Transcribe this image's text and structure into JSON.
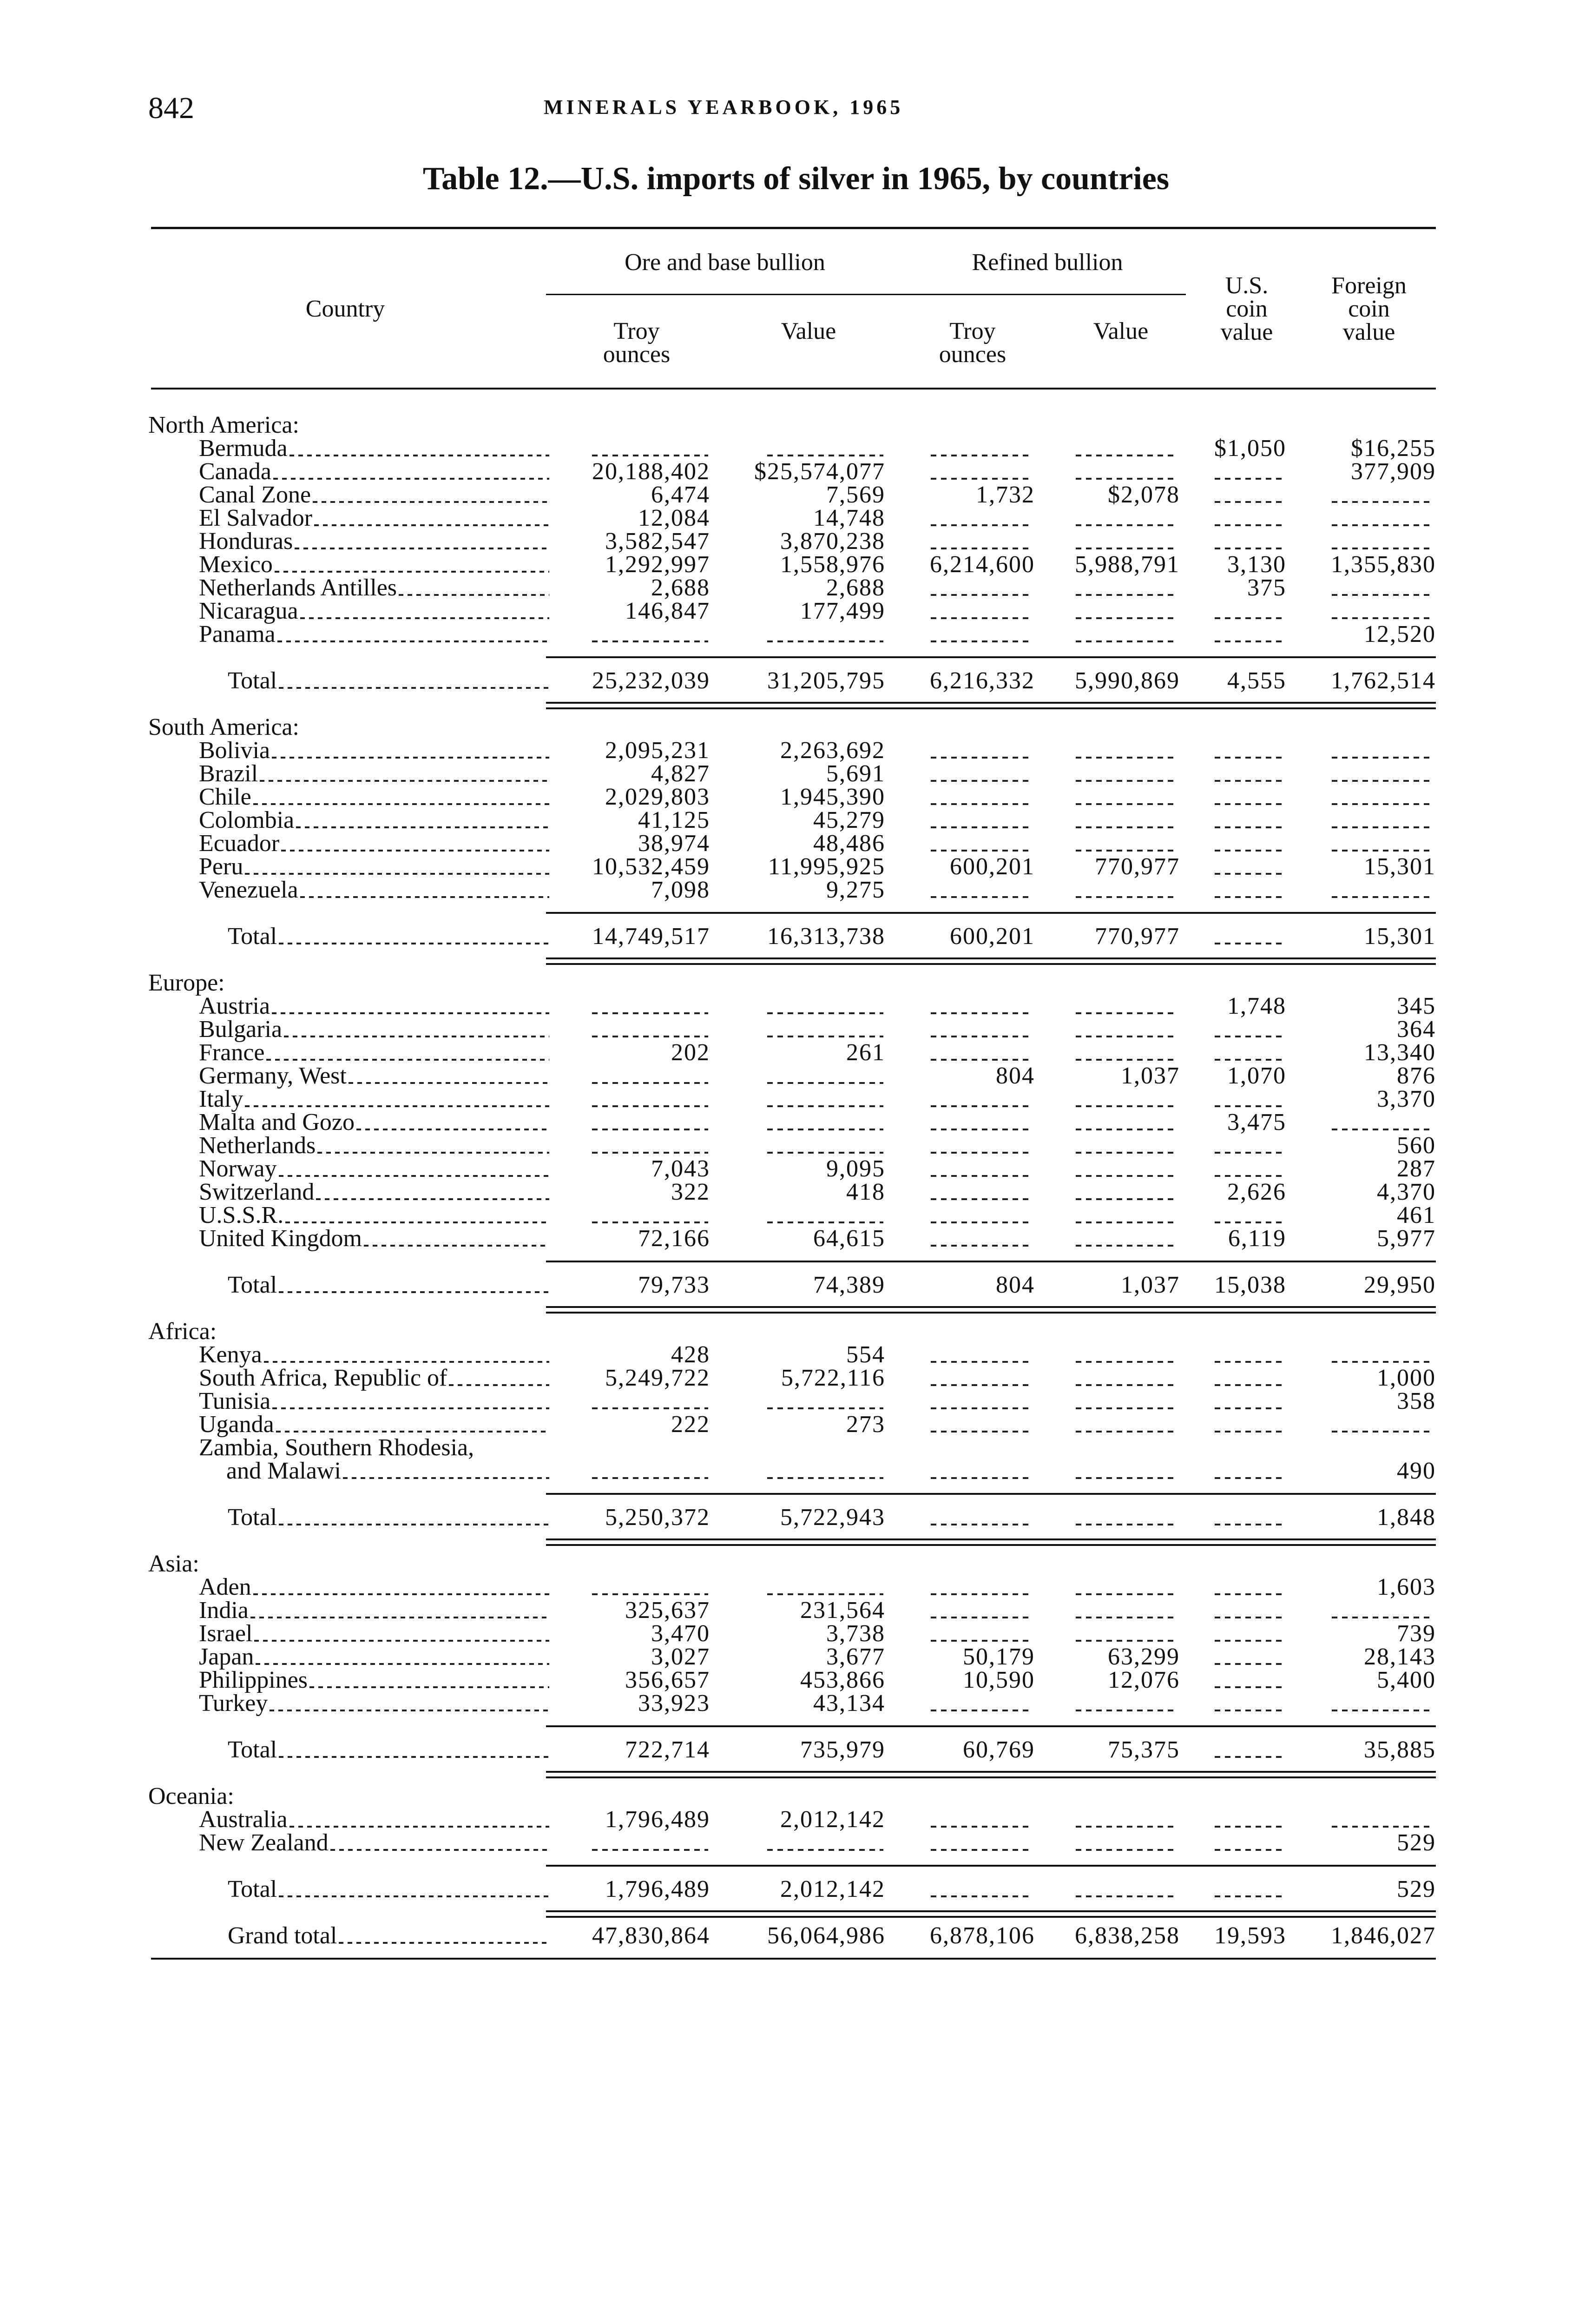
{
  "page": {
    "page_number": "842",
    "running_head": "MINERALS YEARBOOK, 1965",
    "title": "Table 12.—U.S. imports of silver in 1965, by countries"
  },
  "headers": {
    "country": "Country",
    "ore_group": "Ore and base bullion",
    "refined_group": "Refined bullion",
    "troy_ounces_1": "Troy",
    "troy_ounces_1b": "ounces",
    "value_1": "Value",
    "troy_ounces_2": "Troy",
    "troy_ounces_2b": "ounces",
    "value_2": "Value",
    "us_coin_1": "U.S.",
    "us_coin_2": "coin",
    "us_coin_3": "value",
    "foreign_coin_1": "Foreign",
    "foreign_coin_2": "coin",
    "foreign_coin_3": "value"
  },
  "sections": [
    {
      "name": "North America:",
      "items": [
        {
          "label": "Bermuda",
          "values": [
            "",
            "",
            "",
            "",
            "$1,050",
            "$16,255"
          ]
        },
        {
          "label": "Canada",
          "values": [
            "20,188,402",
            "$25,574,077",
            "",
            "",
            "",
            "377,909"
          ]
        },
        {
          "label": "Canal Zone",
          "values": [
            "6,474",
            "7,569",
            "1,732",
            "$2,078",
            "",
            ""
          ]
        },
        {
          "label": "El Salvador",
          "values": [
            "12,084",
            "14,748",
            "",
            "",
            "",
            ""
          ]
        },
        {
          "label": "Honduras",
          "values": [
            "3,582,547",
            "3,870,238",
            "",
            "",
            "",
            ""
          ]
        },
        {
          "label": "Mexico",
          "values": [
            "1,292,997",
            "1,558,976",
            "6,214,600",
            "5,988,791",
            "3,130",
            "1,355,830"
          ]
        },
        {
          "label": "Netherlands Antilles",
          "values": [
            "2,688",
            "2,688",
            "",
            "",
            "375",
            ""
          ]
        },
        {
          "label": "Nicaragua",
          "values": [
            "146,847",
            "177,499",
            "",
            "",
            "",
            ""
          ]
        },
        {
          "label": "Panama",
          "values": [
            "",
            "",
            "",
            "",
            "",
            "12,520"
          ]
        }
      ],
      "total": {
        "label": "Total",
        "values": [
          "25,232,039",
          "31,205,795",
          "6,216,332",
          "5,990,869",
          "4,555",
          "1,762,514"
        ]
      }
    },
    {
      "name": "South America:",
      "items": [
        {
          "label": "Bolivia",
          "values": [
            "2,095,231",
            "2,263,692",
            "",
            "",
            "",
            ""
          ]
        },
        {
          "label": "Brazil",
          "values": [
            "4,827",
            "5,691",
            "",
            "",
            "",
            ""
          ]
        },
        {
          "label": "Chile",
          "values": [
            "2,029,803",
            "1,945,390",
            "",
            "",
            "",
            ""
          ]
        },
        {
          "label": "Colombia",
          "values": [
            "41,125",
            "45,279",
            "",
            "",
            "",
            ""
          ]
        },
        {
          "label": "Ecuador",
          "values": [
            "38,974",
            "48,486",
            "",
            "",
            "",
            ""
          ]
        },
        {
          "label": "Peru",
          "values": [
            "10,532,459",
            "11,995,925",
            "600,201",
            "770,977",
            "",
            "15,301"
          ]
        },
        {
          "label": "Venezuela",
          "values": [
            "7,098",
            "9,275",
            "",
            "",
            "",
            ""
          ]
        }
      ],
      "total": {
        "label": "Total",
        "values": [
          "14,749,517",
          "16,313,738",
          "600,201",
          "770,977",
          "",
          "15,301"
        ]
      }
    },
    {
      "name": "Europe:",
      "items": [
        {
          "label": "Austria",
          "values": [
            "",
            "",
            "",
            "",
            "1,748",
            "345"
          ]
        },
        {
          "label": "Bulgaria",
          "values": [
            "",
            "",
            "",
            "",
            "",
            "364"
          ]
        },
        {
          "label": "France",
          "values": [
            "202",
            "261",
            "",
            "",
            "",
            "13,340"
          ]
        },
        {
          "label": "Germany, West",
          "values": [
            "",
            "",
            "804",
            "1,037",
            "1,070",
            "876"
          ]
        },
        {
          "label": "Italy",
          "values": [
            "",
            "",
            "",
            "",
            "",
            "3,370"
          ]
        },
        {
          "label": "Malta and Gozo",
          "values": [
            "",
            "",
            "",
            "",
            "3,475",
            ""
          ]
        },
        {
          "label": "Netherlands",
          "values": [
            "",
            "",
            "",
            "",
            "",
            "560"
          ]
        },
        {
          "label": "Norway",
          "values": [
            "7,043",
            "9,095",
            "",
            "",
            "",
            "287"
          ]
        },
        {
          "label": "Switzerland",
          "values": [
            "322",
            "418",
            "",
            "",
            "2,626",
            "4,370"
          ]
        },
        {
          "label": "U.S.S.R.",
          "values": [
            "",
            "",
            "",
            "",
            "",
            "461"
          ]
        },
        {
          "label": "United Kingdom",
          "values": [
            "72,166",
            "64,615",
            "",
            "",
            "6,119",
            "5,977"
          ]
        }
      ],
      "total": {
        "label": "Total",
        "values": [
          "79,733",
          "74,389",
          "804",
          "1,037",
          "15,038",
          "29,950"
        ]
      }
    },
    {
      "name": "Africa:",
      "items": [
        {
          "label": "Kenya",
          "values": [
            "428",
            "554",
            "",
            "",
            "",
            ""
          ]
        },
        {
          "label": "South Africa, Republic of",
          "values": [
            "5,249,722",
            "5,722,116",
            "",
            "",
            "",
            "1,000"
          ]
        },
        {
          "label": "Tunisia",
          "values": [
            "",
            "",
            "",
            "",
            "",
            "358"
          ]
        },
        {
          "label": "Uganda",
          "values": [
            "222",
            "273",
            "",
            "",
            "",
            ""
          ]
        },
        {
          "label": "Zambia, Southern Rhodesia,",
          "label_cont": "and Malawi",
          "values": [
            "",
            "",
            "",
            "",
            "",
            "490"
          ]
        }
      ],
      "total": {
        "label": "Total",
        "values": [
          "5,250,372",
          "5,722,943",
          "",
          "",
          "",
          "1,848"
        ]
      }
    },
    {
      "name": "Asia:",
      "items": [
        {
          "label": "Aden",
          "values": [
            "",
            "",
            "",
            "",
            "",
            "1,603"
          ]
        },
        {
          "label": "India",
          "values": [
            "325,637",
            "231,564",
            "",
            "",
            "",
            ""
          ]
        },
        {
          "label": "Israel",
          "values": [
            "3,470",
            "3,738",
            "",
            "",
            "",
            "739"
          ]
        },
        {
          "label": "Japan",
          "values": [
            "3,027",
            "3,677",
            "50,179",
            "63,299",
            "",
            "28,143"
          ]
        },
        {
          "label": "Philippines",
          "values": [
            "356,657",
            "453,866",
            "10,590",
            "12,076",
            "",
            "5,400"
          ]
        },
        {
          "label": "Turkey",
          "values": [
            "33,923",
            "43,134",
            "",
            "",
            "",
            ""
          ]
        }
      ],
      "total": {
        "label": "Total",
        "values": [
          "722,714",
          "735,979",
          "60,769",
          "75,375",
          "",
          "35,885"
        ]
      }
    },
    {
      "name": "Oceania:",
      "items": [
        {
          "label": "Australia",
          "values": [
            "1,796,489",
            "2,012,142",
            "",
            "",
            "",
            ""
          ]
        },
        {
          "label": "New Zealand",
          "values": [
            "",
            "",
            "",
            "",
            "",
            "529"
          ]
        }
      ],
      "total": {
        "label": "Total",
        "values": [
          "1,796,489",
          "2,012,142",
          "",
          "",
          "",
          "529"
        ]
      }
    }
  ],
  "grand_total": {
    "label": "Grand total",
    "values": [
      "47,830,864",
      "56,064,986",
      "6,878,106",
      "6,838,258",
      "19,593",
      "1,846,027"
    ]
  }
}
